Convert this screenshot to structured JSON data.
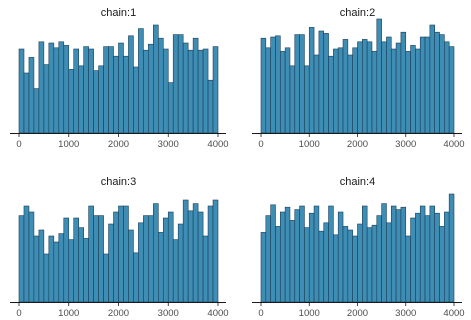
{
  "colors": {
    "bar_fill": "#3d8db5",
    "bar_edge": "#1b3f57",
    "axis": "#1a1a1a",
    "tick_text": "#4d4d4d"
  },
  "chart_data": [
    {
      "type": "bar",
      "title": "chain:1",
      "xlabel": "",
      "ylabel": "",
      "xlim": [
        0,
        4000
      ],
      "ylim": [
        0,
        100
      ],
      "x_ticks": [
        0,
        1000,
        2000,
        3000,
        4000
      ],
      "x_tick_labels": [
        "0",
        "1000",
        "2000",
        "3000",
        "4000"
      ],
      "bins": 40,
      "grid": false,
      "values": [
        70,
        50,
        63,
        37,
        76,
        57,
        75,
        71,
        76,
        73,
        53,
        70,
        56,
        72,
        70,
        52,
        56,
        72,
        72,
        64,
        75,
        64,
        81,
        55,
        87,
        69,
        74,
        90,
        79,
        70,
        42,
        82,
        82,
        75,
        69,
        79,
        69,
        70,
        44,
        72
      ]
    },
    {
      "type": "bar",
      "title": "chain:2",
      "xlabel": "",
      "ylabel": "",
      "xlim": [
        0,
        4000
      ],
      "ylim": [
        0,
        100
      ],
      "x_ticks": [
        0,
        1000,
        2000,
        3000,
        4000
      ],
      "x_tick_labels": [
        "0",
        "1000",
        "2000",
        "3000",
        "4000"
      ],
      "bins": 40,
      "grid": false,
      "values": [
        79,
        71,
        80,
        81,
        68,
        71,
        56,
        82,
        82,
        56,
        88,
        65,
        85,
        83,
        64,
        70,
        71,
        78,
        65,
        71,
        76,
        78,
        76,
        68,
        95,
        76,
        80,
        70,
        75,
        84,
        68,
        73,
        70,
        80,
        80,
        90,
        84,
        82,
        76,
        72
      ]
    },
    {
      "type": "bar",
      "title": "chain:3",
      "xlabel": "",
      "ylabel": "",
      "xlim": [
        0,
        4000
      ],
      "ylim": [
        0,
        100
      ],
      "x_ticks": [
        0,
        1000,
        2000,
        3000,
        4000
      ],
      "x_tick_labels": [
        "0",
        "1000",
        "2000",
        "3000",
        "4000"
      ],
      "bins": 40,
      "grid": false,
      "values": [
        72,
        80,
        75,
        55,
        60,
        40,
        55,
        50,
        57,
        70,
        52,
        70,
        62,
        53,
        80,
        72,
        72,
        40,
        65,
        75,
        80,
        80,
        60,
        41,
        66,
        72,
        72,
        82,
        58,
        70,
        75,
        52,
        65,
        85,
        76,
        82,
        75,
        55,
        80,
        85
      ]
    },
    {
      "type": "bar",
      "title": "chain:4",
      "xlabel": "",
      "ylabel": "",
      "xlim": [
        0,
        4000
      ],
      "ylim": [
        0,
        100
      ],
      "x_ticks": [
        0,
        1000,
        2000,
        3000,
        4000
      ],
      "x_tick_labels": [
        "0",
        "1000",
        "2000",
        "3000",
        "4000"
      ],
      "bins": 40,
      "grid": false,
      "values": [
        58,
        72,
        81,
        63,
        75,
        79,
        68,
        77,
        80,
        62,
        74,
        80,
        59,
        66,
        80,
        56,
        75,
        63,
        60,
        55,
        65,
        80,
        62,
        64,
        72,
        82,
        66,
        80,
        77,
        79,
        55,
        70,
        74,
        80,
        72,
        80,
        74,
        63,
        75,
        90
      ]
    }
  ]
}
